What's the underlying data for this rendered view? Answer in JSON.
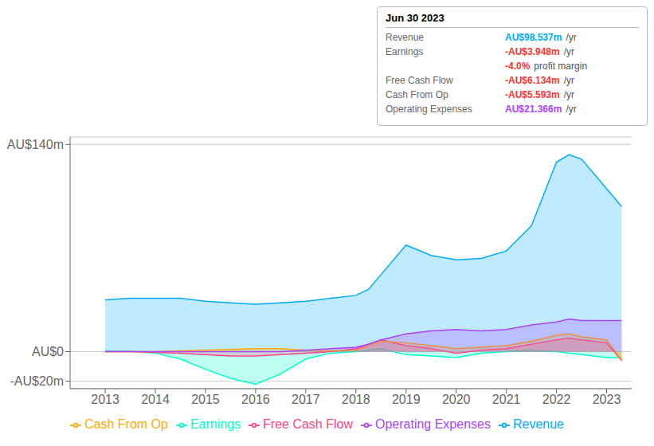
{
  "chart_data": {
    "type": "area",
    "x": [
      2013,
      2013.5,
      2014,
      2014.5,
      2015,
      2015.5,
      2016,
      2016.5,
      2017,
      2017.5,
      2018,
      2018.25,
      2018.5,
      2019,
      2019.5,
      2020,
      2020.5,
      2021,
      2021.5,
      2022,
      2022.25,
      2022.5,
      2023,
      2023.3
    ],
    "xlim": [
      2012.3,
      2023.5
    ],
    "xticks": [
      2013,
      2014,
      2015,
      2016,
      2017,
      2018,
      2019,
      2020,
      2021,
      2022,
      2023
    ],
    "ylim": [
      -25,
      145
    ],
    "yticks": [
      {
        "value": -20,
        "label": "-AU$20m"
      },
      {
        "value": 0,
        "label": "AU$0"
      },
      {
        "value": 140,
        "label": "AU$140m"
      }
    ],
    "grid": true,
    "legend": "bottom",
    "series": [
      {
        "name": "Revenue",
        "color": "#00aaff",
        "values": [
          35,
          36,
          36,
          36,
          34,
          33,
          32,
          33,
          34,
          36,
          38,
          42,
          52,
          72,
          65,
          62,
          63,
          68,
          85,
          128,
          133,
          130,
          110,
          98
        ]
      },
      {
        "name": "Earnings",
        "color": "#00ffcc",
        "values": [
          0.5,
          0.3,
          -1,
          -5,
          -12,
          -18,
          -22,
          -15,
          -5,
          -1,
          0,
          1,
          2,
          -2,
          -3,
          -4,
          -1,
          0,
          1,
          0,
          -1,
          -2,
          -4,
          -4
        ]
      },
      {
        "name": "Free Cash Flow",
        "color": "#ff4488",
        "values": [
          0,
          0,
          -0.5,
          -1,
          -2,
          -3,
          -3,
          -2,
          -1,
          0,
          2,
          5,
          8,
          4,
          2,
          -1,
          1,
          2,
          5,
          8,
          9,
          8,
          6,
          -6
        ]
      },
      {
        "name": "Cash From Op",
        "color": "#ffaa00",
        "values": [
          0,
          0,
          0,
          0.5,
          1,
          1.5,
          2,
          2,
          1,
          0.5,
          1,
          4,
          7,
          6,
          4,
          2,
          3,
          4,
          7,
          11,
          12,
          10,
          8,
          -5.5
        ]
      },
      {
        "name": "Operating Expenses",
        "color": "#aa44ff",
        "values": [
          0,
          0,
          0,
          0,
          0,
          0,
          0,
          0,
          1,
          2,
          3,
          5,
          8,
          12,
          14,
          15,
          14,
          15,
          18,
          20,
          22,
          21,
          21,
          21
        ]
      }
    ],
    "annotation_box": {
      "title": "Jun 30 2023",
      "rows": [
        {
          "label": "Revenue",
          "text": "AU$98.537m",
          "suffix": "/yr",
          "color": "#00aaff"
        },
        {
          "label": "Earnings",
          "text": "-AU$3.948m",
          "suffix": "/yr",
          "color": "#ff3333"
        },
        {
          "text": "-4.0%",
          "suffix": "profit margin",
          "color": "#ff3333"
        },
        {
          "label": "Free Cash Flow",
          "text": "-AU$6.134m",
          "suffix": "/yr",
          "color": "#ff3333"
        },
        {
          "label": "Cash From Op",
          "text": "-AU$5.593m",
          "suffix": "/yr",
          "color": "#ff3333"
        },
        {
          "label": "Operating Expenses",
          "text": "AU$21.366m",
          "suffix": "/yr",
          "color": "#aa44ff"
        }
      ]
    }
  }
}
